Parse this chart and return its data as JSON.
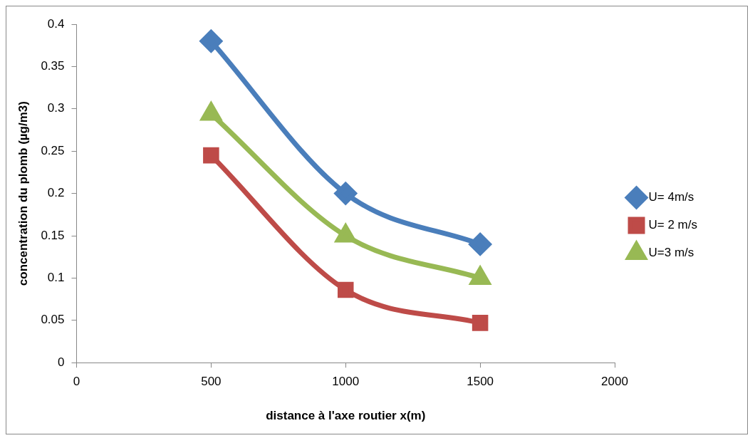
{
  "chart_data": {
    "type": "line",
    "xlabel": "distance à l'axe routier x(m)",
    "ylabel": "concentration du plomb (µg/m3)",
    "x": [
      500,
      1000,
      1500
    ],
    "series": [
      {
        "name": "U= 4m/s",
        "color": "#4a7ebb",
        "marker": "diamond",
        "values": [
          0.38,
          0.2,
          0.14
        ]
      },
      {
        "name": "U= 2 m/s",
        "color": "#be4b48",
        "marker": "square",
        "values": [
          0.245,
          0.086,
          0.047
        ]
      },
      {
        "name": "U=3 m/s",
        "color": "#98b954",
        "marker": "triangle",
        "values": [
          0.294,
          0.15,
          0.1
        ]
      }
    ],
    "xlim": [
      0,
      2000
    ],
    "xticks": [
      0,
      500,
      1000,
      1500,
      2000
    ],
    "ylim": [
      0,
      0.4
    ],
    "yticks": [
      0,
      0.05,
      0.1,
      0.15,
      0.2,
      0.25,
      0.3,
      0.35,
      0.4
    ],
    "grid": false,
    "legend": "right",
    "line_style": "solid"
  }
}
